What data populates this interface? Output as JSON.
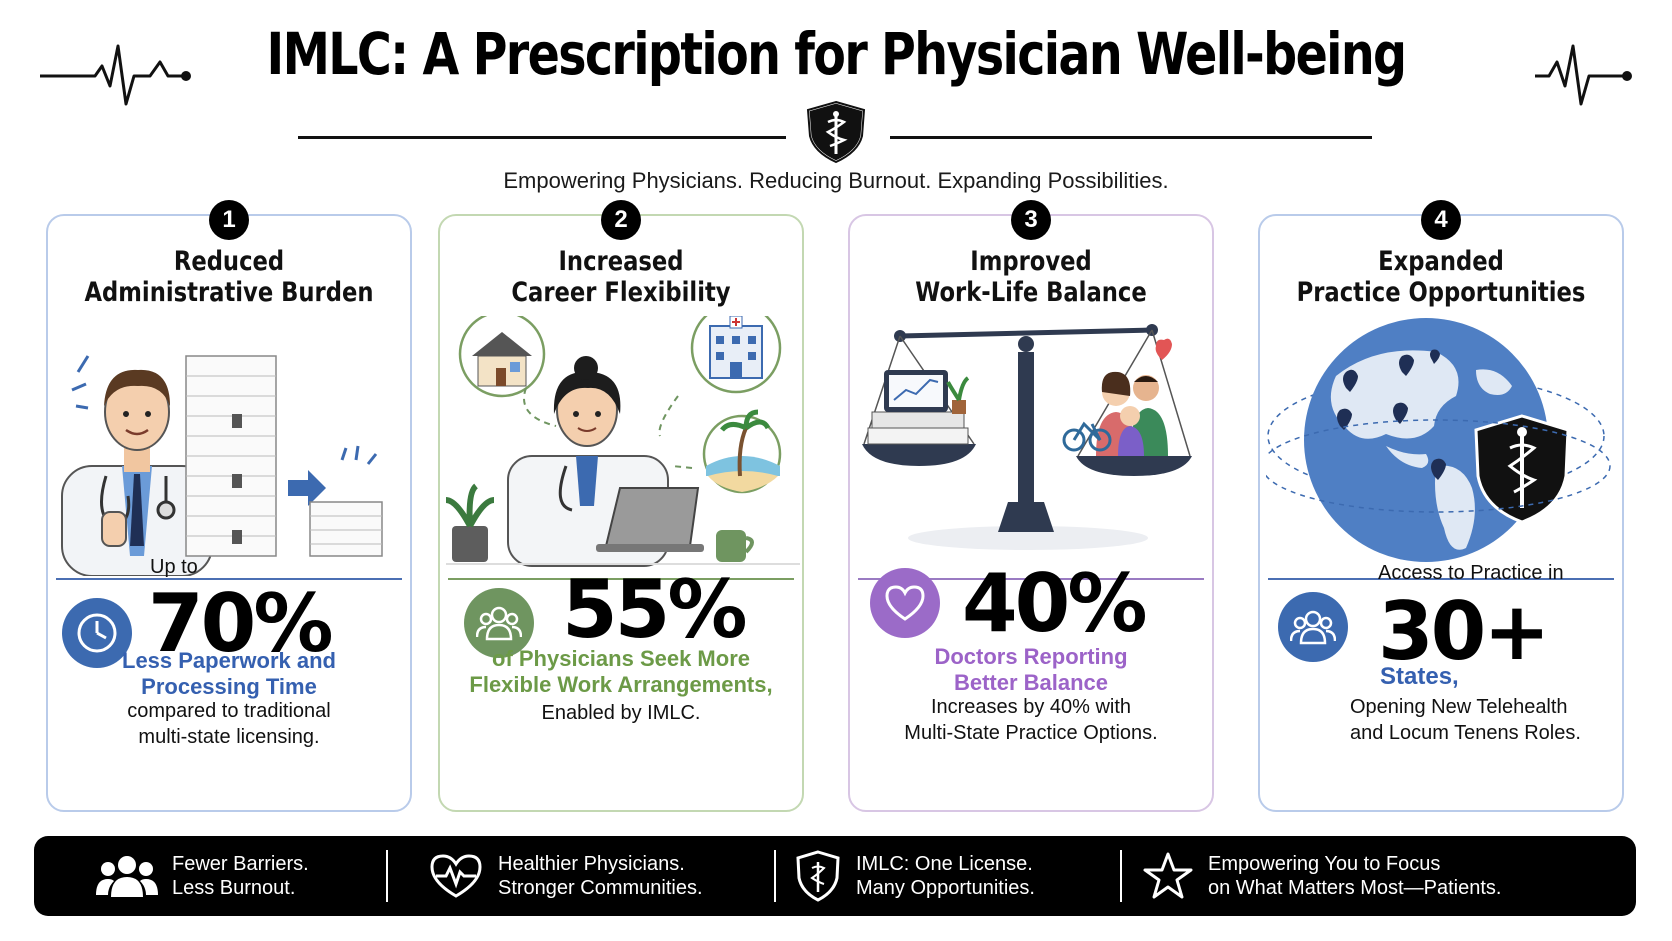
{
  "header": {
    "title": "IMLC: A Prescription for Physician Well-being",
    "subtitle": "Empowering Physicians. Reducing Burnout. Expanding Possibilities."
  },
  "cards": [
    {
      "number": "1",
      "title": "Reduced\nAdministrative Burden",
      "prefix": "Up to",
      "stat": "70%",
      "highlight": "Less Paperwork and\nProcessing Time",
      "description": "compared to traditional\nmulti-state licensing.",
      "icon": "clock-icon"
    },
    {
      "number": "2",
      "title": "Increased\nCareer Flexibility",
      "stat": "55%",
      "highlight": "of Physicians Seek More\nFlexible Work Arrangements,",
      "description": "Enabled by IMLC.",
      "icon": "people-icon"
    },
    {
      "number": "3",
      "title": "Improved\nWork-Life Balance",
      "stat": "40%",
      "highlight": "Doctors Reporting\nBetter Balance",
      "description": "Increases by 40% with\nMulti-State Practice Options.",
      "icon": "heart-icon"
    },
    {
      "number": "4",
      "title": "Expanded\nPractice Opportunities",
      "prefix": "Access to Practice in",
      "stat": "30+",
      "highlight": "States,",
      "description": "Opening New Telehealth\nand Locum Tenens Roles.",
      "icon": "people-icon"
    }
  ],
  "footer": [
    {
      "text": "Fewer Barriers.\nLess Burnout.",
      "icon": "group-icon"
    },
    {
      "text": "Healthier Physicians.\nStronger Communities.",
      "icon": "heartbeat-icon"
    },
    {
      "text": "IMLC: One License.\nMany Opportunities.",
      "icon": "shield-icon"
    },
    {
      "text": "Empowering You to Focus\non What Matters Most—Patients.",
      "icon": "star-icon"
    }
  ],
  "colors": {
    "blue": "#3560b0",
    "green": "#6c9a47",
    "purple": "#9c63c8",
    "footer_bg": "#000000"
  }
}
